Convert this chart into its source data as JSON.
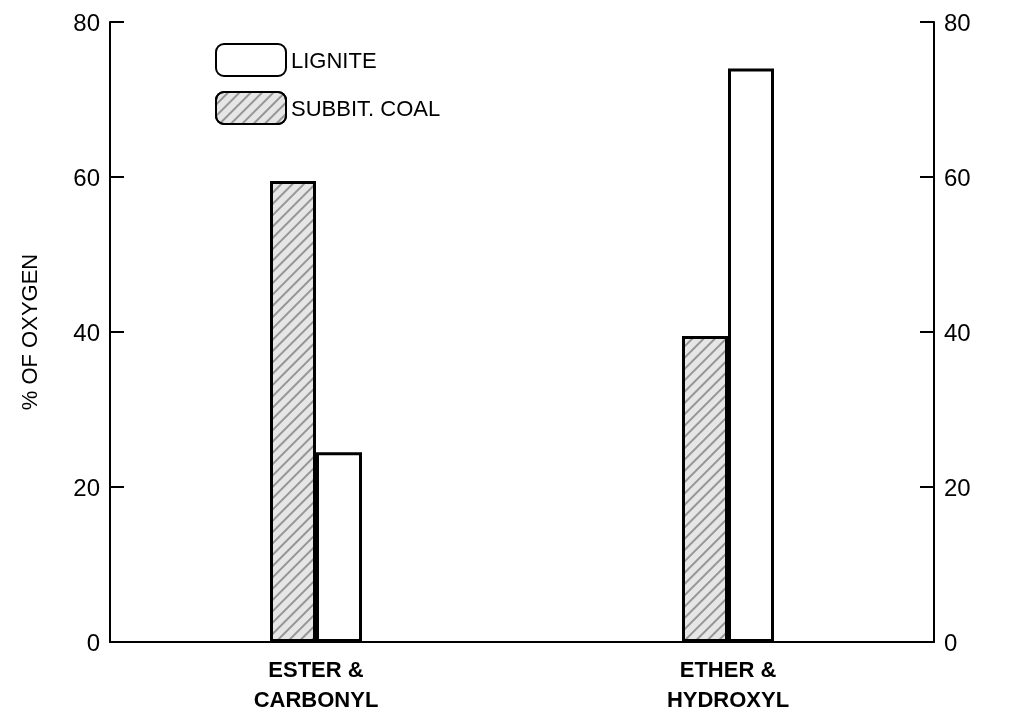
{
  "chart_data": {
    "type": "bar",
    "ylabel": "% OF OXYGEN",
    "categories": [
      "ESTER &\nCARBONYL",
      "ETHER &\nHYDROXYL"
    ],
    "series": [
      {
        "name": "SUBBIT. COAL",
        "color": "#e6e6e6",
        "values": [
          59.5,
          39.5
        ]
      },
      {
        "name": "LIGNITE",
        "color": "#ffffff",
        "values": [
          24.5,
          74
        ]
      }
    ],
    "ylim": [
      0,
      80
    ],
    "yticks": [
      0,
      20,
      40,
      60,
      80
    ],
    "y2lim": [
      0,
      80
    ],
    "y2ticks": [
      0,
      20,
      40,
      60,
      80
    ],
    "grid": false,
    "legend": "top left"
  }
}
